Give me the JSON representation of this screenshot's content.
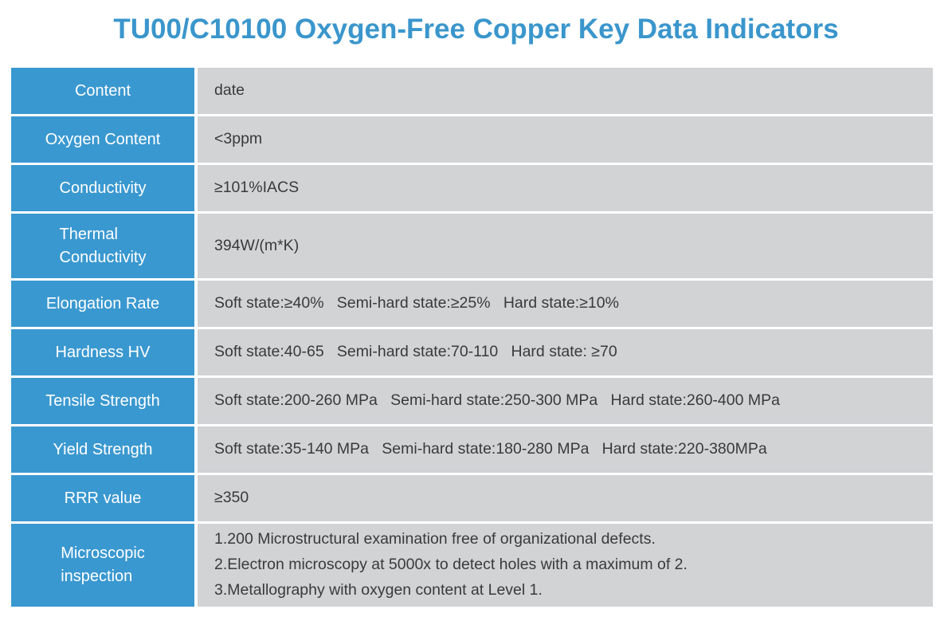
{
  "title": "TU00/C10100 Oxygen-Free Copper Key Data Indicators",
  "colors": {
    "title_blue": "#3A96CC",
    "header_cell_blue": "#3A98D0",
    "value_cell_gray": "#D2D3D5",
    "value_text": "#3A3A3A",
    "header_text": "#FFFFFF"
  },
  "table": {
    "rows": [
      {
        "label": "Content",
        "value": "date"
      },
      {
        "label": "Oxygen Content",
        "value": "<3ppm"
      },
      {
        "label": "Conductivity",
        "value": "≥101%IACS"
      },
      {
        "label": "Thermal\nConductivity",
        "value": "394W/(m*K)"
      },
      {
        "label": "Elongation Rate",
        "value": "Soft state:≥40%   Semi-hard state:≥25%   Hard state:≥10%"
      },
      {
        "label": "Hardness HV",
        "value": "Soft state:40-65   Semi-hard state:70-110   Hard state: ≥70"
      },
      {
        "label": "Tensile Strength",
        "value": "Soft state:200-260 MPa   Semi-hard state:250-300 MPa   Hard state:260-400 MPa"
      },
      {
        "label": "Yield Strength",
        "value": "Soft state:35-140 MPa   Semi-hard state:180-280 MPa   Hard state:220-380MPa"
      },
      {
        "label": "RRR value",
        "value": "≥350"
      },
      {
        "label": "Microscopic\ninspection",
        "value": "1.200 Microstructural examination free of organizational defects.\n2.Electron microscopy at 5000x to detect holes with a maximum of 2.\n3.Metallography with oxygen content at Level 1."
      }
    ]
  }
}
